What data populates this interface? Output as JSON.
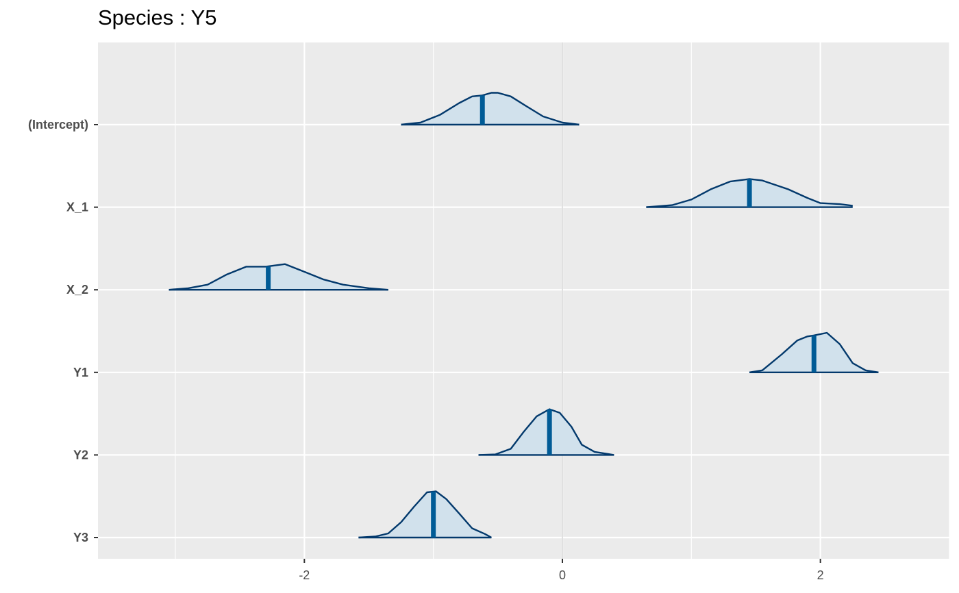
{
  "chart_data": {
    "type": "ridgeline",
    "title": "Species : Y5",
    "xlabel": "",
    "ylabel": "",
    "xlim": [
      -3.6,
      3.0
    ],
    "x_ticks": [
      -2,
      0,
      2
    ],
    "x_tick_labels": [
      "-2",
      "0",
      "2"
    ],
    "grid": true,
    "colors": {
      "panel": "#ebebeb",
      "grid": "#ffffff",
      "zero_line": "#e0e0e0",
      "fill": "#d1e1ec",
      "outline": "#03396c",
      "median": "#005b96",
      "tick": "#333333",
      "tick_label": "#4d4d4d"
    },
    "series": [
      {
        "name": "(Intercept)",
        "median": -0.62,
        "density": [
          [
            -1.25,
            0.0
          ],
          [
            -1.1,
            0.04
          ],
          [
            -0.95,
            0.19
          ],
          [
            -0.8,
            0.42
          ],
          [
            -0.7,
            0.55
          ],
          [
            -0.62,
            0.57
          ],
          [
            -0.55,
            0.62
          ],
          [
            -0.5,
            0.62
          ],
          [
            -0.4,
            0.55
          ],
          [
            -0.28,
            0.36
          ],
          [
            -0.15,
            0.16
          ],
          [
            0.0,
            0.04
          ],
          [
            0.13,
            0.0
          ]
        ]
      },
      {
        "name": "X_1",
        "median": 1.45,
        "density": [
          [
            0.65,
            0.0
          ],
          [
            0.85,
            0.04
          ],
          [
            1.0,
            0.15
          ],
          [
            1.15,
            0.35
          ],
          [
            1.3,
            0.5
          ],
          [
            1.45,
            0.55
          ],
          [
            1.55,
            0.52
          ],
          [
            1.75,
            0.35
          ],
          [
            1.9,
            0.18
          ],
          [
            2.0,
            0.08
          ],
          [
            2.15,
            0.06
          ],
          [
            2.25,
            0.03
          ]
        ]
      },
      {
        "name": "X_2",
        "median": -2.28,
        "density": [
          [
            -3.05,
            0.0
          ],
          [
            -2.9,
            0.03
          ],
          [
            -2.75,
            0.1
          ],
          [
            -2.6,
            0.3
          ],
          [
            -2.45,
            0.45
          ],
          [
            -2.3,
            0.45
          ],
          [
            -2.15,
            0.5
          ],
          [
            -2.0,
            0.35
          ],
          [
            -1.85,
            0.2
          ],
          [
            -1.7,
            0.1
          ],
          [
            -1.5,
            0.03
          ],
          [
            -1.35,
            0.0
          ]
        ]
      },
      {
        "name": "Y1",
        "median": 1.95,
        "density": [
          [
            1.45,
            0.0
          ],
          [
            1.55,
            0.04
          ],
          [
            1.7,
            0.35
          ],
          [
            1.82,
            0.62
          ],
          [
            1.9,
            0.7
          ],
          [
            1.95,
            0.72
          ],
          [
            2.05,
            0.77
          ],
          [
            2.15,
            0.55
          ],
          [
            2.25,
            0.18
          ],
          [
            2.35,
            0.04
          ],
          [
            2.45,
            0.0
          ]
        ]
      },
      {
        "name": "Y2",
        "median": -0.1,
        "density": [
          [
            -0.65,
            0.0
          ],
          [
            -0.52,
            0.01
          ],
          [
            -0.4,
            0.12
          ],
          [
            -0.3,
            0.45
          ],
          [
            -0.2,
            0.75
          ],
          [
            -0.1,
            0.89
          ],
          [
            -0.02,
            0.82
          ],
          [
            0.07,
            0.55
          ],
          [
            0.15,
            0.2
          ],
          [
            0.25,
            0.06
          ],
          [
            0.4,
            0.0
          ]
        ]
      },
      {
        "name": "Y3",
        "median": -1.0,
        "density": [
          [
            -1.58,
            0.0
          ],
          [
            -1.45,
            0.02
          ],
          [
            -1.35,
            0.08
          ],
          [
            -1.25,
            0.3
          ],
          [
            -1.15,
            0.6
          ],
          [
            -1.05,
            0.88
          ],
          [
            -0.98,
            0.9
          ],
          [
            -0.9,
            0.75
          ],
          [
            -0.8,
            0.47
          ],
          [
            -0.7,
            0.18
          ],
          [
            -0.6,
            0.07
          ],
          [
            -0.55,
            0.0
          ]
        ]
      }
    ]
  }
}
